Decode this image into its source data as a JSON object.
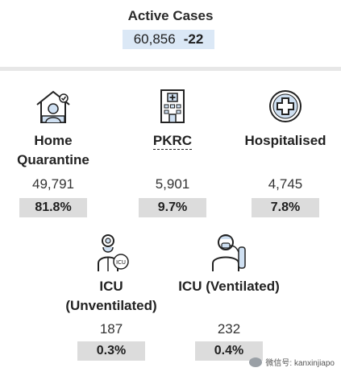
{
  "summary": {
    "title": "Active Cases",
    "value": "60,856",
    "delta": "-22"
  },
  "stats": [
    {
      "label_line1": "Home",
      "label_line2": "Quarantine",
      "value": "49,791",
      "percent": "81.8%",
      "icon": "home-quarantine-icon"
    },
    {
      "label_line1": "PKRC",
      "label_line2": "",
      "value": "5,901",
      "percent": "9.7%",
      "icon": "hospital-building-icon"
    },
    {
      "label_line1": "Hospitalised",
      "label_line2": "",
      "value": "4,745",
      "percent": "7.8%",
      "icon": "medical-cross-icon"
    },
    {
      "label_line1": "ICU",
      "label_line2": "(Unventilated)",
      "value": "187",
      "percent": "0.3%",
      "icon": "doctor-icu-icon"
    },
    {
      "label_line1": "ICU (Ventilated)",
      "label_line2": "",
      "value": "232",
      "percent": "0.4%",
      "icon": "ventilator-patient-icon"
    }
  ],
  "watermark": {
    "text": "微信号: kanxinjiapo"
  },
  "colors": {
    "summary_bg": "#dbe8f6",
    "percent_bg": "#dcdcdc",
    "divider": "#e7e7e7"
  }
}
